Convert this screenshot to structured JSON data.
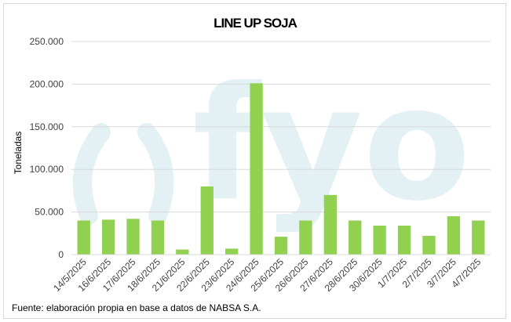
{
  "chart_data": {
    "type": "bar",
    "title": "LINE UP SOJA",
    "ylabel": "Toneladas",
    "xlabel": "",
    "ylim": [
      0,
      250000
    ],
    "yticks": [
      0,
      50000,
      100000,
      150000,
      200000,
      250000
    ],
    "ytick_labels": [
      "0",
      "50.000",
      "100.000",
      "150.000",
      "200.000",
      "250.000"
    ],
    "grid": true,
    "legend": "none",
    "bar_color": "#92d050",
    "categories": [
      "14/5/2025",
      "16/6/2025",
      "17/6/2025",
      "18/6/2025",
      "21/6/2025",
      "22/6/2025",
      "23/6/2025",
      "24/6/2025",
      "25/6/2025",
      "26/6/2025",
      "27/6/2025",
      "28/6/2025",
      "30/6/2025",
      "1/7/2025",
      "2/7/2025",
      "3/7/2025",
      "4/7/2025"
    ],
    "values": [
      40000,
      41000,
      42000,
      40000,
      6000,
      80000,
      7000,
      201000,
      21000,
      40000,
      70000,
      40000,
      34000,
      34000,
      22000,
      45000,
      40000
    ]
  },
  "watermark": {
    "text": "fyo",
    "color": "#e3f1f4"
  },
  "source": "Fuente: elaboración propia en base a datos de NABSA S.A."
}
